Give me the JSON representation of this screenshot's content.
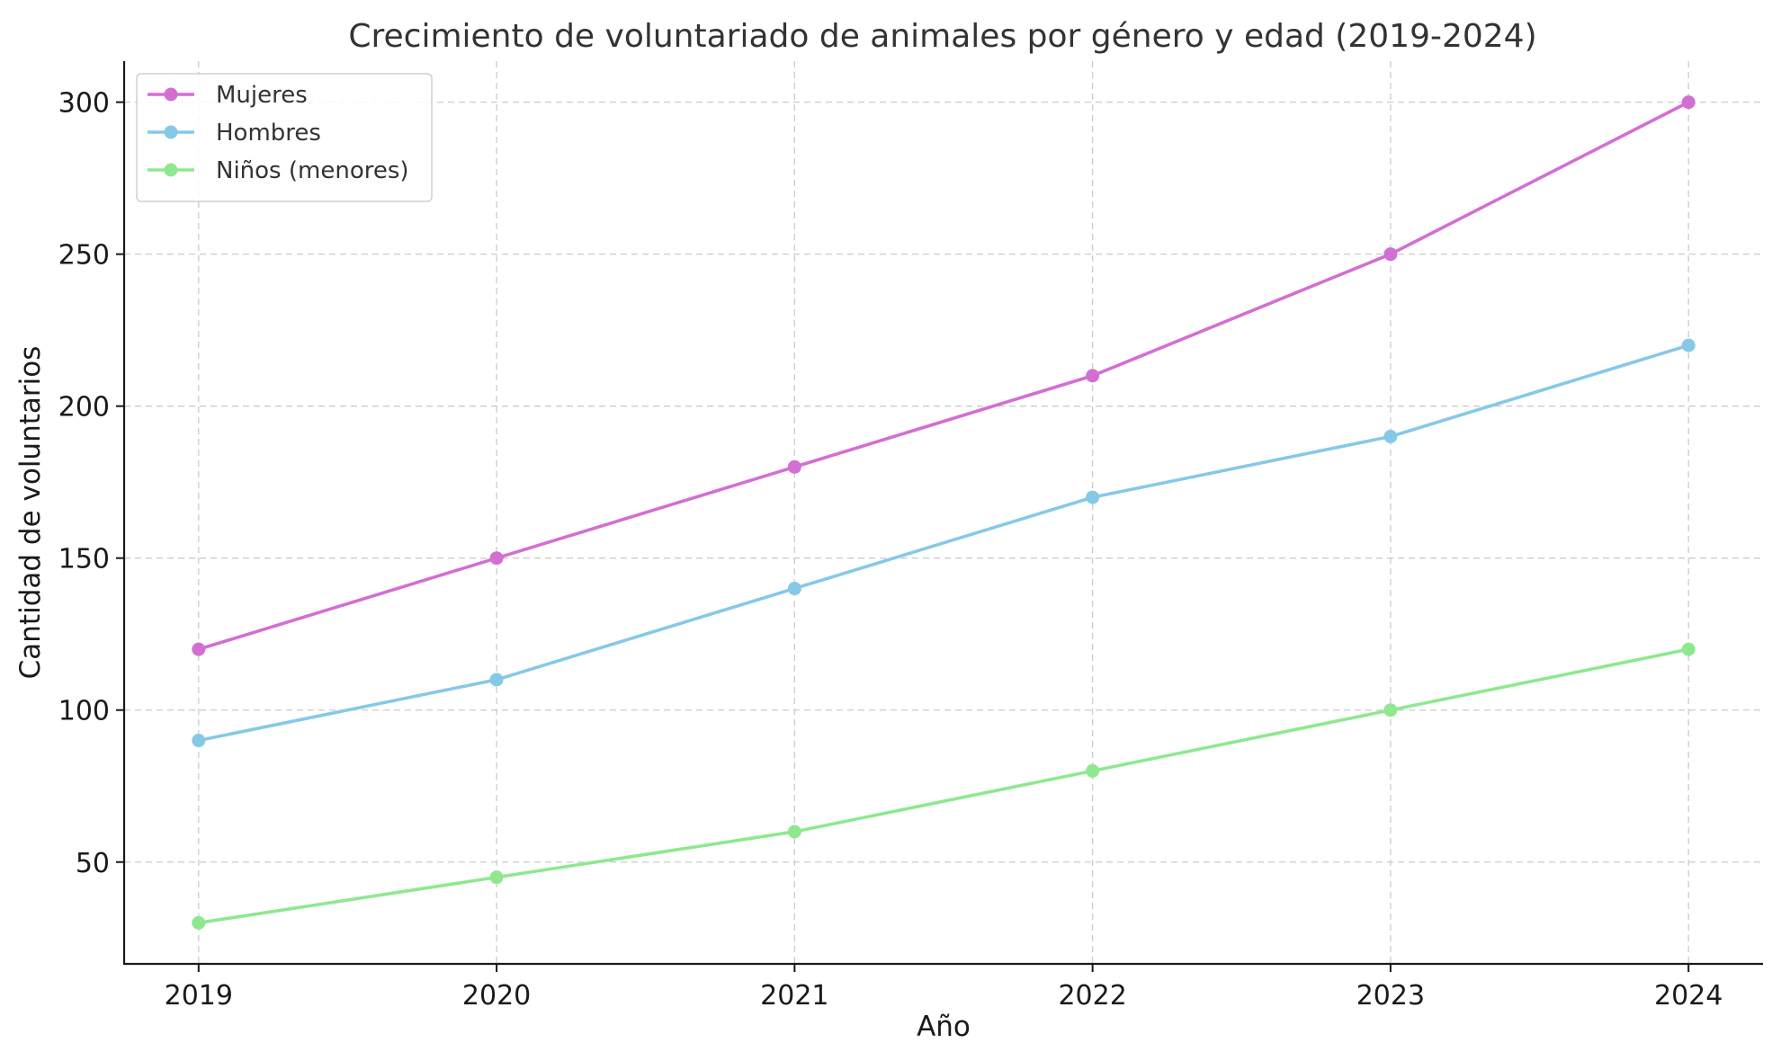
{
  "chart_data": {
    "type": "line",
    "title": "Crecimiento de voluntariado de animales por género y edad (2019-2024)",
    "xlabel": "Año",
    "ylabel": "Cantidad de voluntarios",
    "x": [
      2019,
      2020,
      2021,
      2022,
      2023,
      2024
    ],
    "x_tick_labels": [
      "2019",
      "2020",
      "2021",
      "2022",
      "2023",
      "2024"
    ],
    "y_ticks": [
      50,
      100,
      150,
      200,
      250,
      300
    ],
    "y_tick_labels": [
      "50",
      "100",
      "150",
      "200",
      "250",
      "300"
    ],
    "xlim": [
      2018.75,
      2024.25
    ],
    "ylim": [
      16.5,
      313.5
    ],
    "grid": true,
    "legend_position": "top-left",
    "series": [
      {
        "name": "Mujeres",
        "color": "#d36ed3",
        "values": [
          120,
          150,
          180,
          210,
          250,
          300
        ]
      },
      {
        "name": "Hombres",
        "color": "#86c9e6",
        "values": [
          90,
          110,
          140,
          170,
          190,
          220
        ]
      },
      {
        "name": "Niños (menores)",
        "color": "#8fe88f",
        "values": [
          30,
          45,
          60,
          80,
          100,
          120
        ]
      }
    ]
  }
}
